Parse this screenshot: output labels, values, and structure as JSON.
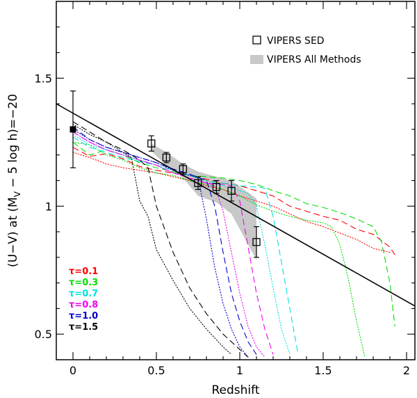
{
  "chart_data": {
    "type": "line",
    "xlabel": "Redshift",
    "ylabel": {
      "pre": "(U−V) at (M",
      "sub": "V",
      "post": " − 5 log h)=−20"
    },
    "xlim": [
      -0.1,
      2.05
    ],
    "ylim": [
      0.4,
      1.8
    ],
    "xticks": [
      {
        "v": 0,
        "label": "0"
      },
      {
        "v": 0.5,
        "label": "0.5"
      },
      {
        "v": 1,
        "label": "1"
      },
      {
        "v": 1.5,
        "label": "1.5"
      },
      {
        "v": 2,
        "label": "2"
      }
    ],
    "yticks": [
      {
        "v": 0.5,
        "label": "0.5"
      },
      {
        "v": 1,
        "label": "1"
      },
      {
        "v": 1.5,
        "label": "1.5"
      }
    ],
    "legend": {
      "sed_label": "VIPERS SED",
      "all_methods_label": "VIPERS All Methods"
    },
    "vipers_sed": [
      {
        "x": 0.47,
        "y": 1.245,
        "err": 0.03
      },
      {
        "x": 0.56,
        "y": 1.19,
        "err": 0.02
      },
      {
        "x": 0.66,
        "y": 1.145,
        "err": 0.02
      },
      {
        "x": 0.75,
        "y": 1.09,
        "err": 0.025
      },
      {
        "x": 0.86,
        "y": 1.075,
        "err": 0.025
      },
      {
        "x": 0.95,
        "y": 1.06,
        "err": 0.04
      },
      {
        "x": 1.1,
        "y": 0.86,
        "err": 0.06
      }
    ],
    "local_point": {
      "x": 0,
      "y": 1.3,
      "err": 0.15
    },
    "all_methods_band": {
      "x": [
        0.47,
        0.56,
        0.66,
        0.75,
        0.86,
        0.95,
        1.1
      ],
      "upper": [
        1.245,
        1.21,
        1.165,
        1.135,
        1.115,
        1.1,
        1.03
      ],
      "lower": [
        1.215,
        1.16,
        1.11,
        1.04,
        1.015,
        0.97,
        0.79
      ]
    },
    "fit_line": {
      "x": [
        -0.1,
        2.05
      ],
      "y": [
        1.4,
        0.61
      ]
    },
    "tau_models": [
      {
        "label": "τ=0.1",
        "color": "#ff0000",
        "dotted": {
          "x": [
            0,
            0.1,
            0.2,
            0.3,
            0.4,
            0.5,
            0.6,
            0.7,
            0.8,
            0.9,
            1.0,
            1.1,
            1.2,
            1.3,
            1.4,
            1.5,
            1.6,
            1.7,
            1.8,
            1.9
          ],
          "y": [
            1.21,
            1.19,
            1.165,
            1.15,
            1.14,
            1.13,
            1.115,
            1.1,
            1.08,
            1.065,
            1.04,
            1.02,
            1.0,
            0.97,
            0.94,
            0.92,
            0.895,
            0.87,
            0.835,
            0.82
          ]
        },
        "dashed": {
          "x": [
            0,
            0.1,
            0.2,
            0.3,
            0.4,
            0.5,
            0.6,
            0.7,
            0.8,
            0.9,
            1.0,
            1.1,
            1.2,
            1.3,
            1.4,
            1.5,
            1.6,
            1.7,
            1.8,
            1.9,
            1.93
          ],
          "y": [
            1.23,
            1.195,
            1.205,
            1.185,
            1.155,
            1.14,
            1.13,
            1.12,
            1.105,
            1.09,
            1.08,
            1.06,
            1.04,
            1.0,
            0.98,
            0.96,
            0.945,
            0.91,
            0.89,
            0.84,
            0.81
          ]
        }
      },
      {
        "label": "τ=0.3",
        "color": "#00dd00",
        "dotted": {
          "x": [
            0,
            0.1,
            0.2,
            0.3,
            0.4,
            0.5,
            0.6,
            0.7,
            0.8,
            0.9,
            1.0,
            1.1,
            1.2,
            1.3,
            1.4,
            1.5,
            1.55,
            1.6,
            1.65,
            1.7,
            1.75
          ],
          "y": [
            1.25,
            1.24,
            1.2,
            1.18,
            1.15,
            1.13,
            1.12,
            1.1,
            1.085,
            1.065,
            1.04,
            1.005,
            0.98,
            0.96,
            0.945,
            0.935,
            0.92,
            0.85,
            0.72,
            0.55,
            0.41
          ]
        },
        "dashed": {
          "x": [
            0,
            0.1,
            0.2,
            0.3,
            0.4,
            0.5,
            0.6,
            0.7,
            0.8,
            0.9,
            1.0,
            1.1,
            1.2,
            1.3,
            1.4,
            1.5,
            1.6,
            1.7,
            1.8,
            1.85,
            1.9,
            1.93
          ],
          "y": [
            1.25,
            1.2,
            1.22,
            1.2,
            1.17,
            1.15,
            1.135,
            1.12,
            1.115,
            1.11,
            1.1,
            1.085,
            1.06,
            1.04,
            1.01,
            0.995,
            0.975,
            0.95,
            0.92,
            0.86,
            0.7,
            0.53
          ]
        }
      },
      {
        "label": "τ=0.7",
        "color": "#00e0e0",
        "dotted": {
          "x": [
            0,
            0.1,
            0.2,
            0.3,
            0.4,
            0.5,
            0.6,
            0.7,
            0.8,
            0.9,
            1.0,
            1.05,
            1.1,
            1.15,
            1.2,
            1.25,
            1.3
          ],
          "y": [
            1.28,
            1.24,
            1.22,
            1.2,
            1.18,
            1.16,
            1.13,
            1.12,
            1.1,
            1.08,
            1.06,
            1.05,
            1.0,
            0.85,
            0.68,
            0.52,
            0.42
          ]
        },
        "dashed": {
          "x": [
            0,
            0.1,
            0.2,
            0.3,
            0.4,
            0.5,
            0.6,
            0.7,
            0.8,
            0.9,
            1.0,
            1.1,
            1.15,
            1.2,
            1.25,
            1.3,
            1.35
          ],
          "y": [
            1.27,
            1.23,
            1.21,
            1.19,
            1.175,
            1.16,
            1.14,
            1.12,
            1.1,
            1.09,
            1.08,
            1.075,
            1.07,
            0.96,
            0.78,
            0.6,
            0.42
          ]
        }
      },
      {
        "label": "τ=0.8",
        "color": "#ee00ee",
        "dotted": {
          "x": [
            0,
            0.1,
            0.2,
            0.3,
            0.4,
            0.5,
            0.6,
            0.7,
            0.8,
            0.85,
            0.9,
            0.95,
            1.0,
            1.05,
            1.1,
            1.15
          ],
          "y": [
            1.29,
            1.25,
            1.22,
            1.2,
            1.18,
            1.16,
            1.13,
            1.11,
            1.09,
            1.08,
            0.98,
            0.82,
            0.66,
            0.53,
            0.45,
            0.41
          ]
        },
        "dashed": {
          "x": [
            0,
            0.1,
            0.2,
            0.3,
            0.4,
            0.5,
            0.6,
            0.7,
            0.8,
            0.9,
            0.95,
            1.0,
            1.05,
            1.1,
            1.15,
            1.2
          ],
          "y": [
            1.29,
            1.25,
            1.22,
            1.2,
            1.18,
            1.16,
            1.13,
            1.11,
            1.09,
            1.085,
            1.08,
            1.02,
            0.84,
            0.66,
            0.52,
            0.42
          ]
        }
      },
      {
        "label": "τ=1.0",
        "color": "#0000cc",
        "dotted": {
          "x": [
            0,
            0.1,
            0.2,
            0.3,
            0.4,
            0.5,
            0.6,
            0.7,
            0.75,
            0.8,
            0.85,
            0.9,
            0.95,
            1.0,
            1.05
          ],
          "y": [
            1.3,
            1.26,
            1.23,
            1.21,
            1.19,
            1.17,
            1.14,
            1.12,
            1.11,
            0.95,
            0.76,
            0.62,
            0.52,
            0.45,
            0.41
          ]
        },
        "dashed": {
          "x": [
            0,
            0.1,
            0.2,
            0.3,
            0.4,
            0.5,
            0.6,
            0.7,
            0.8,
            0.85,
            0.9,
            0.95,
            1.0,
            1.05,
            1.1
          ],
          "y": [
            1.31,
            1.26,
            1.23,
            1.21,
            1.19,
            1.17,
            1.145,
            1.125,
            1.1,
            1.0,
            0.82,
            0.66,
            0.55,
            0.47,
            0.42
          ]
        }
      },
      {
        "label": "τ=1.5",
        "color": "#000000",
        "dotted": {
          "x": [
            0,
            0.1,
            0.2,
            0.3,
            0.35,
            0.4,
            0.45,
            0.5,
            0.6,
            0.7,
            0.8,
            0.9,
            0.95
          ],
          "y": [
            1.32,
            1.28,
            1.25,
            1.21,
            1.19,
            1.02,
            0.96,
            0.83,
            0.71,
            0.6,
            0.52,
            0.45,
            0.42
          ]
        },
        "dashed": {
          "x": [
            0,
            0.1,
            0.2,
            0.3,
            0.35,
            0.4,
            0.45,
            0.5,
            0.6,
            0.7,
            0.8,
            0.9,
            1.0,
            1.05
          ],
          "y": [
            1.33,
            1.29,
            1.25,
            1.22,
            1.2,
            1.18,
            1.15,
            1.0,
            0.82,
            0.68,
            0.58,
            0.5,
            0.44,
            0.41
          ]
        }
      }
    ]
  }
}
